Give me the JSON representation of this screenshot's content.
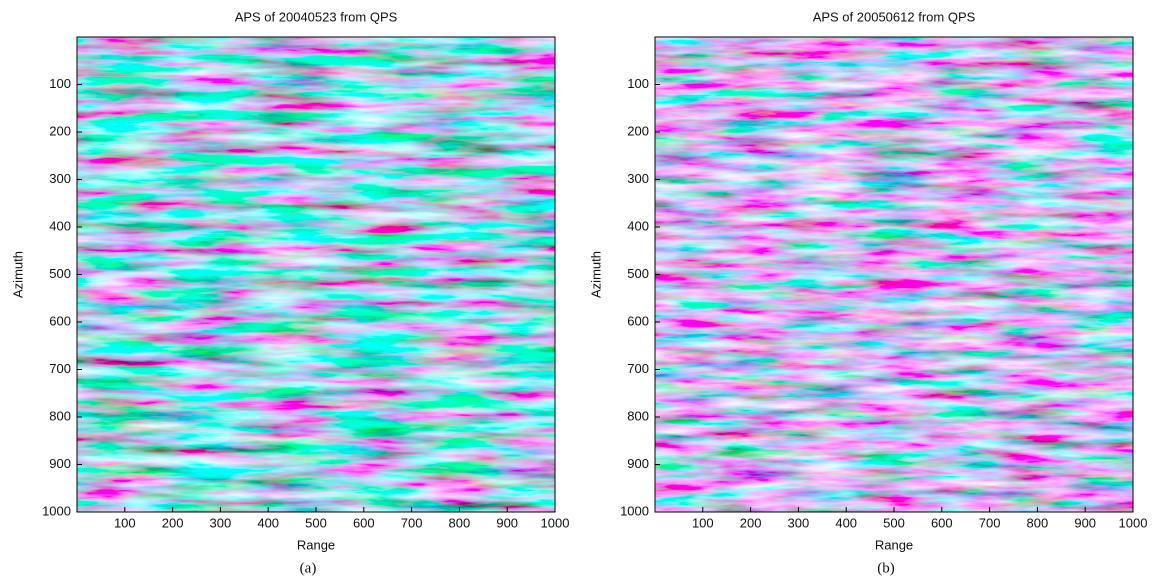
{
  "chart_data": [
    {
      "type": "image",
      "title": "APS of 20040523 from QPS",
      "xlabel": "Range",
      "ylabel": "Azimuth",
      "xlim": [
        0,
        1000
      ],
      "ylim": [
        1000,
        0
      ],
      "xticks": [
        100,
        200,
        300,
        400,
        500,
        600,
        700,
        800,
        900,
        1000
      ],
      "yticks": [
        100,
        200,
        300,
        400,
        500,
        600,
        700,
        800,
        900,
        1000
      ],
      "caption": "(a)"
    },
    {
      "type": "image",
      "title": "APS of 20050612 from QPS",
      "xlabel": "Range",
      "ylabel": "Azimuth",
      "xlim": [
        0,
        1000
      ],
      "ylim": [
        1000,
        0
      ],
      "xticks": [
        100,
        200,
        300,
        400,
        500,
        600,
        700,
        800,
        900,
        1000
      ],
      "yticks": [
        100,
        200,
        300,
        400,
        500,
        600,
        700,
        800,
        900,
        1000
      ],
      "caption": "(b)"
    }
  ]
}
